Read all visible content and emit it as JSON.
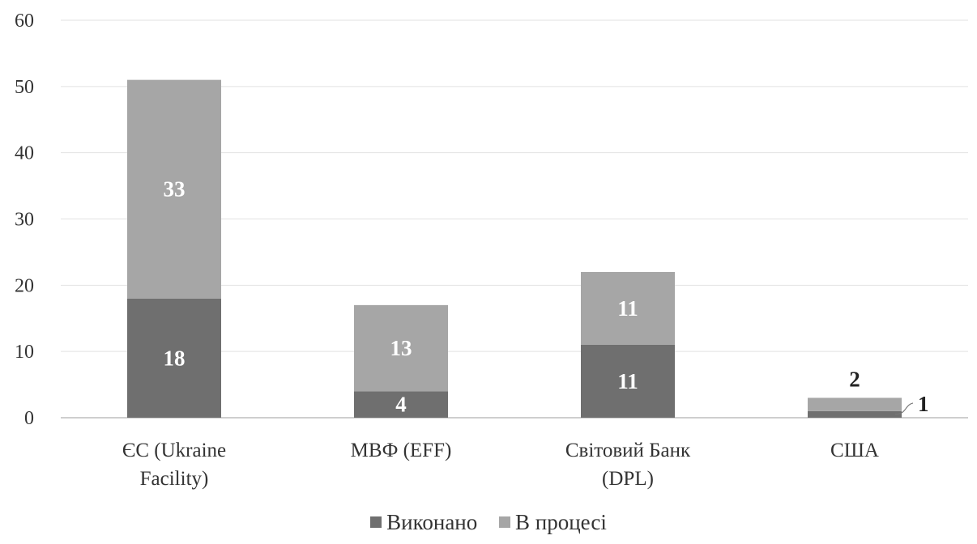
{
  "chart_data": {
    "type": "bar",
    "stacked": true,
    "categories": [
      [
        "ЄС (Ukraine",
        "Facility)"
      ],
      [
        "МВФ (EFF)"
      ],
      [
        "Світовий Банк",
        "(DPL)"
      ],
      [
        "США"
      ]
    ],
    "series": [
      {
        "name": "Виконано",
        "values": [
          18,
          4,
          11,
          1
        ],
        "color": "#6f6f6f"
      },
      {
        "name": "В процесі",
        "values": [
          33,
          13,
          11,
          2
        ],
        "color": "#a6a6a6"
      }
    ],
    "data_labels": [
      [
        "18",
        "4",
        "11",
        "1"
      ],
      [
        "33",
        "13",
        "11",
        "2"
      ]
    ],
    "ylim": [
      0,
      60
    ],
    "yticks": [
      0,
      10,
      20,
      30,
      40,
      50,
      60
    ],
    "grid": true,
    "legend_position": "bottom"
  }
}
